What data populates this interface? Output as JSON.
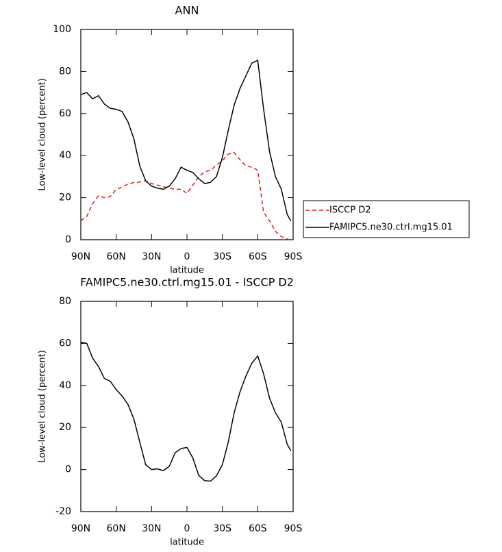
{
  "chart_data": [
    {
      "type": "line",
      "title": "ANN",
      "xlabel": "latitude",
      "ylabel": "Low-level cloud (percent)",
      "x": [
        90,
        85,
        80,
        75,
        70,
        65,
        60,
        55,
        50,
        45,
        40,
        35,
        30,
        25,
        20,
        15,
        10,
        5,
        0,
        -5,
        -10,
        -15,
        -20,
        -25,
        -30,
        -35,
        -40,
        -45,
        -50,
        -55,
        -60,
        -65,
        -70,
        -75,
        -80,
        -85,
        -88
      ],
      "xlim": [
        90,
        -90
      ],
      "xticks": [
        {
          "value": 90,
          "label": "90N"
        },
        {
          "value": 60,
          "label": "60N"
        },
        {
          "value": 30,
          "label": "30N"
        },
        0,
        {
          "value": -30,
          "label": "30S"
        },
        {
          "value": -60,
          "label": "60S"
        },
        {
          "value": -90,
          "label": "90S"
        }
      ],
      "ylim": [
        0,
        100
      ],
      "yticks": [
        0,
        20,
        40,
        60,
        80,
        100
      ],
      "legend": "right",
      "series": [
        {
          "name": "ISCCP D2",
          "color": "#e41a1c",
          "linestyle": "dashed",
          "values": [
            9,
            11,
            17,
            21,
            20,
            20.5,
            24,
            25,
            26.5,
            27.2,
            27.4,
            28,
            26.7,
            26,
            25.2,
            24.6,
            24,
            24,
            22,
            26,
            30,
            32.3,
            33,
            35.5,
            37.5,
            40.7,
            41.5,
            38,
            35,
            34.5,
            33,
            13,
            9,
            4,
            1.5,
            0.3,
            0
          ]
        },
        {
          "name": "FAMIPC5.ne30.ctrl.mg15.01",
          "color": "#000000",
          "linestyle": "solid",
          "values": [
            69,
            70,
            67,
            68.5,
            64.5,
            62.5,
            62,
            61,
            56,
            48,
            35,
            28,
            25.5,
            24.5,
            24,
            25.5,
            29,
            34.5,
            33,
            32,
            29,
            26.7,
            27.3,
            30,
            39,
            52,
            64,
            72,
            78,
            84,
            85.3,
            62,
            42,
            30,
            24,
            12,
            9
          ]
        }
      ]
    },
    {
      "type": "line",
      "title": "FAMIPC5.ne30.ctrl.mg15.01 - ISCCP D2",
      "xlabel": "latitude",
      "ylabel": "Low-level cloud (percent)",
      "x": [
        90,
        85,
        80,
        75,
        70,
        65,
        60,
        55,
        50,
        45,
        40,
        35,
        30,
        25,
        20,
        15,
        10,
        5,
        0,
        -5,
        -10,
        -15,
        -20,
        -25,
        -30,
        -35,
        -40,
        -45,
        -50,
        -55,
        -60,
        -65,
        -70,
        -75,
        -80,
        -85,
        -88
      ],
      "xlim": [
        90,
        -90
      ],
      "xticks": [
        {
          "value": 90,
          "label": "90N"
        },
        {
          "value": 60,
          "label": "60N"
        },
        {
          "value": 30,
          "label": "30N"
        },
        0,
        {
          "value": -30,
          "label": "30S"
        },
        {
          "value": -60,
          "label": "60S"
        },
        {
          "value": -90,
          "label": "90S"
        }
      ],
      "ylim": [
        -20,
        80
      ],
      "yticks": [
        -20,
        0,
        20,
        40,
        60,
        80
      ],
      "color": "#000000",
      "values": [
        60.5,
        60,
        53,
        49,
        43.3,
        42,
        38,
        35,
        31,
        24,
        13,
        2.3,
        0,
        0.3,
        -0.5,
        1.5,
        8,
        10,
        10.5,
        5.5,
        -2.8,
        -5.3,
        -5.5,
        -3,
        2.3,
        13,
        27,
        37,
        44.5,
        50.6,
        54,
        45.5,
        34,
        27,
        22.5,
        12,
        9
      ]
    }
  ]
}
